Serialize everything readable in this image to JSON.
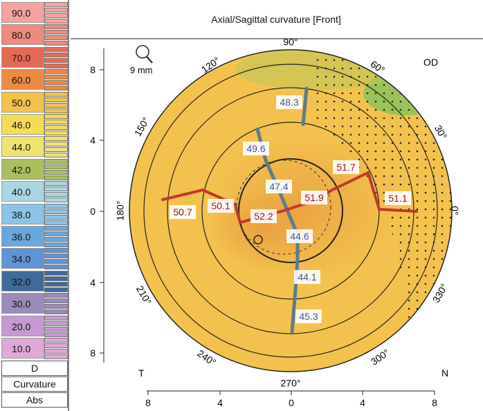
{
  "header": {
    "title": "Axial/Sagittal curvature [Front]"
  },
  "scale": {
    "values": [
      "90.0",
      "80.0",
      "70.0",
      "60.0",
      "50.0",
      "46.0",
      "44.0",
      "42.0",
      "40.0",
      "38.0",
      "36.0",
      "34.0",
      "32.0",
      "30.0",
      "20.0",
      "10.0"
    ],
    "colors": [
      "#f4a3a0",
      "#ee8a7e",
      "#e56a55",
      "#ec8a45",
      "#f2c24c",
      "#f6dc55",
      "#f0e470",
      "#a8c060",
      "#a9d6e2",
      "#8cc3e6",
      "#6aa8dc",
      "#5f94d6",
      "#3f6a9a",
      "#9b8bb8",
      "#c69ad0",
      "#e0a8d6"
    ],
    "footer": [
      "D",
      "Curvature",
      "Abs"
    ]
  },
  "map": {
    "eye": "OD",
    "zoom_label": "9 mm",
    "angle_labels": [
      "90°",
      "60°",
      "30°",
      "0°",
      "330°",
      "300°",
      "270°",
      "240°",
      "210°",
      "180°",
      "150°",
      "120°"
    ],
    "corner_left": "T",
    "corner_right": "N",
    "yaxis_ticks": [
      "8",
      "4",
      "0",
      "4",
      "8"
    ],
    "xaxis_ticks": [
      "8",
      "4",
      "0",
      "4",
      "8"
    ],
    "readings_blue": [
      "48.3",
      "49.6",
      "47.4",
      "44.6",
      "44.1",
      "45.3"
    ],
    "readings_red": [
      "51.7",
      "51.9",
      "52.2",
      "50.7",
      "50.1",
      "51.1"
    ],
    "colors": {
      "map_base": "#f3c24e",
      "steep_zone": "#eaa344",
      "flat_zone": "#9cc25a",
      "blue_meridian": "#5c7d8b",
      "red_meridian": "#c0392b",
      "blue_text": "#3f55a6",
      "red_text": "#a1122f"
    }
  }
}
